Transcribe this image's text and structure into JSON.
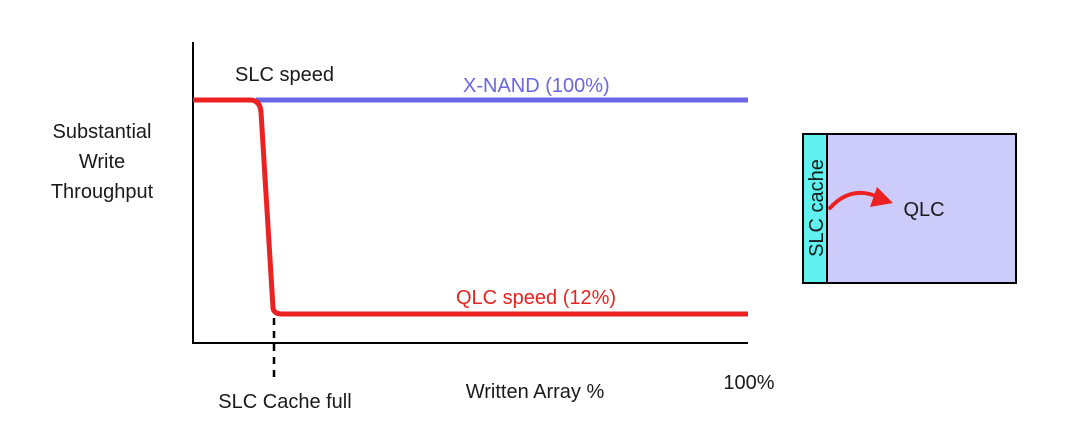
{
  "y_axis_label_lines": [
    "Substantial",
    "Write",
    "Throughput"
  ],
  "x_axis_label": "Written Array %",
  "x_axis_end_label": "100%",
  "annotations": {
    "slc_speed": "SLC speed",
    "xnand": "X-NAND (100%)",
    "qlc_speed": "QLC speed (12%)",
    "slc_cache_full": "SLC Cache full"
  },
  "storage_box": {
    "cache_label": "SLC cache",
    "main_label": "QLC"
  },
  "colors": {
    "xnand_line": "#6b66e6",
    "qlc_line": "#ec2222",
    "cache_strip": "#5ff2ee",
    "storage_fill": "#cccbfa",
    "axis": "#000000"
  }
}
